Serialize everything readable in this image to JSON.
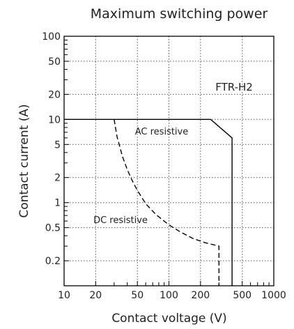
{
  "chart_data": {
    "type": "line",
    "title": "Maximum switching power",
    "xlabel": "Contact voltage (V)",
    "ylabel": "Contact current (A)",
    "xscale": "log",
    "yscale": "log",
    "xlim": [
      10,
      1000
    ],
    "ylim": [
      0.1,
      100
    ],
    "grid": true,
    "x_ticks": [
      {
        "v": 10,
        "label": "10"
      },
      {
        "v": 20,
        "label": "20"
      },
      {
        "v": 50,
        "label": "50"
      },
      {
        "v": 100,
        "label": "100"
      },
      {
        "v": 200,
        "label": "200"
      },
      {
        "v": 500,
        "label": "500"
      },
      {
        "v": 1000,
        "label": "1000"
      }
    ],
    "y_ticks": [
      {
        "v": 100,
        "label": "100"
      },
      {
        "v": 50,
        "label": "50"
      },
      {
        "v": 20,
        "label": "20"
      },
      {
        "v": 10,
        "label": "10"
      },
      {
        "v": 5,
        "label": "5"
      },
      {
        "v": 2,
        "label": "2"
      },
      {
        "v": 1,
        "label": "1"
      },
      {
        "v": 0.5,
        "label": "0.5"
      },
      {
        "v": 0.2,
        "label": "0.2"
      }
    ],
    "annotation": "FTR-H2",
    "series": [
      {
        "name": "AC resistive",
        "style": "solid",
        "color": "#000000",
        "points": [
          [
            10,
            10
          ],
          [
            250,
            10
          ],
          [
            400,
            6
          ],
          [
            400,
            0.1
          ]
        ]
      },
      {
        "name": "DC resistive",
        "style": "dashed",
        "color": "#000000",
        "points": [
          [
            30,
            10
          ],
          [
            32,
            6.2
          ],
          [
            36,
            3.6
          ],
          [
            40,
            2.5
          ],
          [
            45,
            1.8
          ],
          [
            50,
            1.4
          ],
          [
            60,
            0.97
          ],
          [
            75,
            0.72
          ],
          [
            100,
            0.54
          ],
          [
            130,
            0.44
          ],
          [
            170,
            0.37
          ],
          [
            220,
            0.33
          ],
          [
            300,
            0.3
          ],
          [
            300,
            0.1
          ]
        ]
      }
    ]
  }
}
